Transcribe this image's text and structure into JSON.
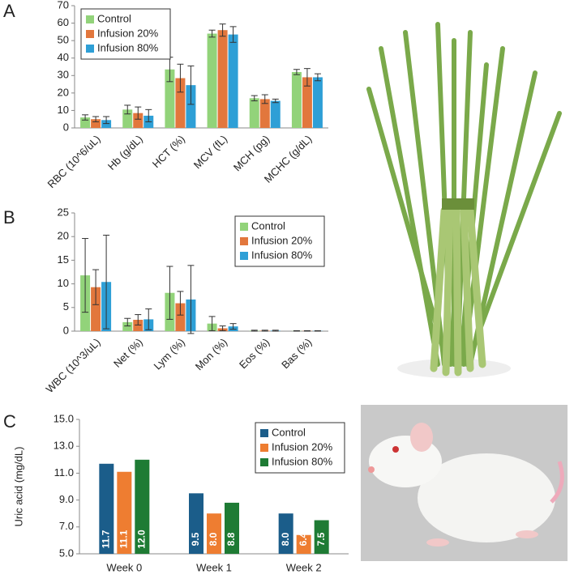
{
  "chart_data": [
    {
      "type": "bar",
      "panel": "A",
      "categories": [
        "RBC (10^6/uL)",
        "Hb (g/dL)",
        "HCT (%)",
        "MCV (fL)",
        "MCH (pg)",
        "MCHC (g/dL)"
      ],
      "series": [
        {
          "name": "Control",
          "color": "#92d37a",
          "values": [
            6,
            10.5,
            33.5,
            54,
            17,
            32
          ],
          "errors": [
            1.5,
            2.5,
            7,
            2,
            1.5,
            1.5
          ]
        },
        {
          "name": "Infusion 20%",
          "color": "#e2773d",
          "values": [
            5,
            8.5,
            28.5,
            56,
            16.5,
            29
          ],
          "errors": [
            1.5,
            3.5,
            8,
            3.5,
            2.5,
            5
          ]
        },
        {
          "name": "Infusion 80%",
          "color": "#2e9fd6",
          "values": [
            4.5,
            7,
            24.5,
            53.5,
            15.5,
            29
          ],
          "errors": [
            2,
            3.5,
            11,
            4.5,
            1,
            2
          ]
        }
      ],
      "ylim": [
        0,
        70
      ],
      "yticks": [
        0,
        10,
        20,
        30,
        40,
        50,
        60,
        70
      ],
      "legend": "upper left"
    },
    {
      "type": "bar",
      "panel": "B",
      "categories": [
        "WBC (10^3/uL)",
        "Net (%)",
        "Lym (%)",
        "Mon (%)",
        "Eos (%)",
        "Bas (%)"
      ],
      "series": [
        {
          "name": "Control",
          "color": "#92d37a",
          "values": [
            11.8,
            1.9,
            8.1,
            1.6,
            0.1,
            0.05
          ],
          "errors": [
            7.8,
            0.8,
            5.6,
            1.5,
            0.1,
            0.05
          ]
        },
        {
          "name": "Infusion 20%",
          "color": "#e2773d",
          "values": [
            9.3,
            2.4,
            5.9,
            0.6,
            0.1,
            0.05
          ],
          "errors": [
            3.7,
            1.1,
            2.5,
            0.5,
            0.1,
            0.05
          ]
        },
        {
          "name": "Infusion 80%",
          "color": "#2e9fd6",
          "values": [
            10.4,
            2.5,
            6.7,
            1.0,
            0.1,
            0.05
          ],
          "errors": [
            9.9,
            2.2,
            7.2,
            0.6,
            0.1,
            0.05
          ]
        }
      ],
      "ylim": [
        0,
        25
      ],
      "yticks": [
        0,
        5,
        10,
        15,
        20,
        25
      ],
      "legend": "upper right"
    },
    {
      "type": "bar",
      "panel": "C",
      "y_label": "Uric acid (mg/dL)",
      "categories": [
        "Week 0",
        "Week 1",
        "Week 2"
      ],
      "series": [
        {
          "name": "Control",
          "color": "#1b5d8a",
          "values": [
            11.7,
            9.5,
            8.0
          ],
          "value_labels": [
            "11.7",
            "9.5",
            "8.0"
          ]
        },
        {
          "name": "Infusion 20%",
          "color": "#ee7d31",
          "values": [
            11.1,
            8.0,
            6.4
          ],
          "value_labels": [
            "11.1",
            "8.0",
            "6.4"
          ]
        },
        {
          "name": "Infusion 80%",
          "color": "#1e7b34",
          "values": [
            12.0,
            8.8,
            7.5
          ],
          "value_labels": [
            "12.0",
            "8.8",
            "7.5"
          ]
        }
      ],
      "ylim": [
        5,
        15
      ],
      "yticks": [
        {
          "value": 5,
          "label": "5.0"
        },
        {
          "value": 7,
          "label": "7.0"
        },
        {
          "value": 9,
          "label": "9.0"
        },
        {
          "value": 11,
          "label": "11.0"
        },
        {
          "value": 13,
          "label": "13.0"
        },
        {
          "value": 15,
          "label": "15.0"
        }
      ],
      "legend": "upper right"
    }
  ]
}
